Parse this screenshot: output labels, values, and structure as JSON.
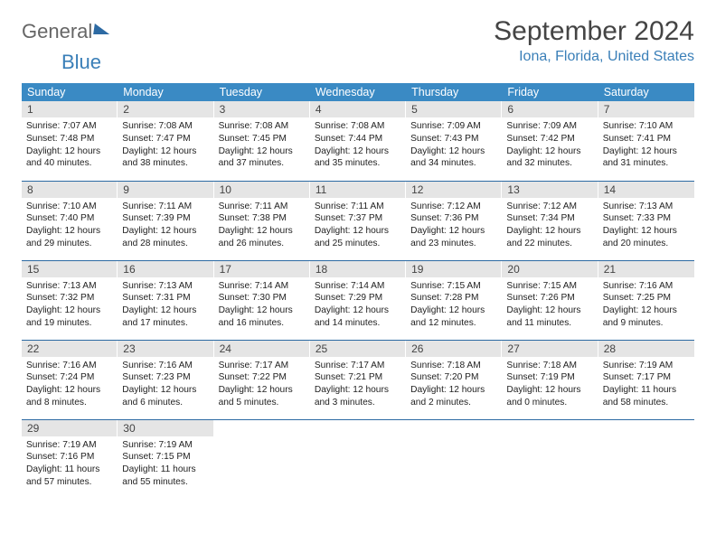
{
  "logo": {
    "text1": "General",
    "text2": "Blue"
  },
  "title": "September 2024",
  "location": "Iona, Florida, United States",
  "colors": {
    "header_bg": "#3a8ac4",
    "header_text": "#ffffff",
    "daynum_bg": "#e5e5e5",
    "row_border": "#2d6aa3",
    "accent": "#3a7fb8"
  },
  "weekdays": [
    "Sunday",
    "Monday",
    "Tuesday",
    "Wednesday",
    "Thursday",
    "Friday",
    "Saturday"
  ],
  "weeks": [
    [
      {
        "n": "1",
        "sr": "Sunrise: 7:07 AM",
        "ss": "Sunset: 7:48 PM",
        "d1": "Daylight: 12 hours",
        "d2": "and 40 minutes."
      },
      {
        "n": "2",
        "sr": "Sunrise: 7:08 AM",
        "ss": "Sunset: 7:47 PM",
        "d1": "Daylight: 12 hours",
        "d2": "and 38 minutes."
      },
      {
        "n": "3",
        "sr": "Sunrise: 7:08 AM",
        "ss": "Sunset: 7:45 PM",
        "d1": "Daylight: 12 hours",
        "d2": "and 37 minutes."
      },
      {
        "n": "4",
        "sr": "Sunrise: 7:08 AM",
        "ss": "Sunset: 7:44 PM",
        "d1": "Daylight: 12 hours",
        "d2": "and 35 minutes."
      },
      {
        "n": "5",
        "sr": "Sunrise: 7:09 AM",
        "ss": "Sunset: 7:43 PM",
        "d1": "Daylight: 12 hours",
        "d2": "and 34 minutes."
      },
      {
        "n": "6",
        "sr": "Sunrise: 7:09 AM",
        "ss": "Sunset: 7:42 PM",
        "d1": "Daylight: 12 hours",
        "d2": "and 32 minutes."
      },
      {
        "n": "7",
        "sr": "Sunrise: 7:10 AM",
        "ss": "Sunset: 7:41 PM",
        "d1": "Daylight: 12 hours",
        "d2": "and 31 minutes."
      }
    ],
    [
      {
        "n": "8",
        "sr": "Sunrise: 7:10 AM",
        "ss": "Sunset: 7:40 PM",
        "d1": "Daylight: 12 hours",
        "d2": "and 29 minutes."
      },
      {
        "n": "9",
        "sr": "Sunrise: 7:11 AM",
        "ss": "Sunset: 7:39 PM",
        "d1": "Daylight: 12 hours",
        "d2": "and 28 minutes."
      },
      {
        "n": "10",
        "sr": "Sunrise: 7:11 AM",
        "ss": "Sunset: 7:38 PM",
        "d1": "Daylight: 12 hours",
        "d2": "and 26 minutes."
      },
      {
        "n": "11",
        "sr": "Sunrise: 7:11 AM",
        "ss": "Sunset: 7:37 PM",
        "d1": "Daylight: 12 hours",
        "d2": "and 25 minutes."
      },
      {
        "n": "12",
        "sr": "Sunrise: 7:12 AM",
        "ss": "Sunset: 7:36 PM",
        "d1": "Daylight: 12 hours",
        "d2": "and 23 minutes."
      },
      {
        "n": "13",
        "sr": "Sunrise: 7:12 AM",
        "ss": "Sunset: 7:34 PM",
        "d1": "Daylight: 12 hours",
        "d2": "and 22 minutes."
      },
      {
        "n": "14",
        "sr": "Sunrise: 7:13 AM",
        "ss": "Sunset: 7:33 PM",
        "d1": "Daylight: 12 hours",
        "d2": "and 20 minutes."
      }
    ],
    [
      {
        "n": "15",
        "sr": "Sunrise: 7:13 AM",
        "ss": "Sunset: 7:32 PM",
        "d1": "Daylight: 12 hours",
        "d2": "and 19 minutes."
      },
      {
        "n": "16",
        "sr": "Sunrise: 7:13 AM",
        "ss": "Sunset: 7:31 PM",
        "d1": "Daylight: 12 hours",
        "d2": "and 17 minutes."
      },
      {
        "n": "17",
        "sr": "Sunrise: 7:14 AM",
        "ss": "Sunset: 7:30 PM",
        "d1": "Daylight: 12 hours",
        "d2": "and 16 minutes."
      },
      {
        "n": "18",
        "sr": "Sunrise: 7:14 AM",
        "ss": "Sunset: 7:29 PM",
        "d1": "Daylight: 12 hours",
        "d2": "and 14 minutes."
      },
      {
        "n": "19",
        "sr": "Sunrise: 7:15 AM",
        "ss": "Sunset: 7:28 PM",
        "d1": "Daylight: 12 hours",
        "d2": "and 12 minutes."
      },
      {
        "n": "20",
        "sr": "Sunrise: 7:15 AM",
        "ss": "Sunset: 7:26 PM",
        "d1": "Daylight: 12 hours",
        "d2": "and 11 minutes."
      },
      {
        "n": "21",
        "sr": "Sunrise: 7:16 AM",
        "ss": "Sunset: 7:25 PM",
        "d1": "Daylight: 12 hours",
        "d2": "and 9 minutes."
      }
    ],
    [
      {
        "n": "22",
        "sr": "Sunrise: 7:16 AM",
        "ss": "Sunset: 7:24 PM",
        "d1": "Daylight: 12 hours",
        "d2": "and 8 minutes."
      },
      {
        "n": "23",
        "sr": "Sunrise: 7:16 AM",
        "ss": "Sunset: 7:23 PM",
        "d1": "Daylight: 12 hours",
        "d2": "and 6 minutes."
      },
      {
        "n": "24",
        "sr": "Sunrise: 7:17 AM",
        "ss": "Sunset: 7:22 PM",
        "d1": "Daylight: 12 hours",
        "d2": "and 5 minutes."
      },
      {
        "n": "25",
        "sr": "Sunrise: 7:17 AM",
        "ss": "Sunset: 7:21 PM",
        "d1": "Daylight: 12 hours",
        "d2": "and 3 minutes."
      },
      {
        "n": "26",
        "sr": "Sunrise: 7:18 AM",
        "ss": "Sunset: 7:20 PM",
        "d1": "Daylight: 12 hours",
        "d2": "and 2 minutes."
      },
      {
        "n": "27",
        "sr": "Sunrise: 7:18 AM",
        "ss": "Sunset: 7:19 PM",
        "d1": "Daylight: 12 hours",
        "d2": "and 0 minutes."
      },
      {
        "n": "28",
        "sr": "Sunrise: 7:19 AM",
        "ss": "Sunset: 7:17 PM",
        "d1": "Daylight: 11 hours",
        "d2": "and 58 minutes."
      }
    ],
    [
      {
        "n": "29",
        "sr": "Sunrise: 7:19 AM",
        "ss": "Sunset: 7:16 PM",
        "d1": "Daylight: 11 hours",
        "d2": "and 57 minutes."
      },
      {
        "n": "30",
        "sr": "Sunrise: 7:19 AM",
        "ss": "Sunset: 7:15 PM",
        "d1": "Daylight: 11 hours",
        "d2": "and 55 minutes."
      },
      {
        "empty": true
      },
      {
        "empty": true
      },
      {
        "empty": true
      },
      {
        "empty": true
      },
      {
        "empty": true
      }
    ]
  ]
}
